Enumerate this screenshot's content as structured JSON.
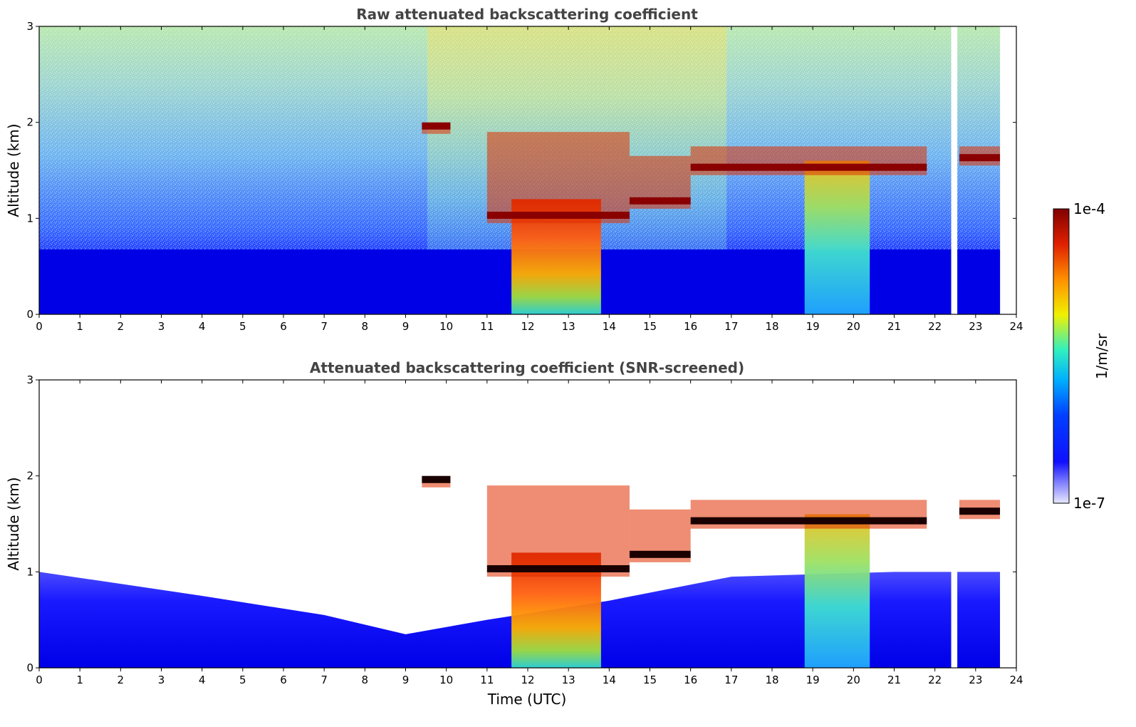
{
  "chart_data": [
    {
      "type": "heatmap",
      "title": "Raw attenuated backscattering coefficient",
      "xlabel": "",
      "ylabel": "Altitude (km)",
      "xlim": [
        0,
        24
      ],
      "ylim": [
        0,
        3
      ],
      "xticks": [
        "0",
        "1",
        "2",
        "3",
        "4",
        "5",
        "6",
        "7",
        "8",
        "9",
        "10",
        "11",
        "12",
        "13",
        "14",
        "15",
        "16",
        "17",
        "18",
        "19",
        "20",
        "21",
        "22",
        "23",
        "24"
      ],
      "yticks": [
        "0",
        "1",
        "2",
        "3"
      ],
      "data_gaps_utc": [
        [
          22.4,
          22.55
        ],
        [
          23.6,
          24
        ]
      ],
      "cloud_layers": [
        {
          "start": 9.4,
          "end": 10.1,
          "base_km": 1.88,
          "top_km": 1.98
        },
        {
          "start": 11.0,
          "end": 14.5,
          "base_km": 0.95,
          "top_km": 1.9
        },
        {
          "start": 14.5,
          "end": 16.0,
          "base_km": 1.1,
          "top_km": 1.65
        },
        {
          "start": 16.0,
          "end": 21.8,
          "base_km": 1.45,
          "top_km": 1.75
        },
        {
          "start": 22.6,
          "end": 23.6,
          "base_km": 1.55,
          "top_km": 1.75
        }
      ],
      "precipitation_or_fallstreaks": [
        {
          "start": 11.6,
          "end": 13.8,
          "from_km": 0,
          "to_km": 1.2
        },
        {
          "start": 18.8,
          "end": 20.4,
          "from_km": 0,
          "to_km": 1.6
        }
      ],
      "grid": false
    },
    {
      "type": "heatmap",
      "title": "Attenuated backscattering coefficient (SNR-screened)",
      "xlabel": "Time (UTC)",
      "ylabel": "Altitude (km)",
      "xlim": [
        0,
        24
      ],
      "ylim": [
        0,
        3
      ],
      "xticks": [
        "0",
        "1",
        "2",
        "3",
        "4",
        "5",
        "6",
        "7",
        "8",
        "9",
        "10",
        "11",
        "12",
        "13",
        "14",
        "15",
        "16",
        "17",
        "18",
        "19",
        "20",
        "21",
        "22",
        "23",
        "24"
      ],
      "yticks": [
        "0",
        "1",
        "2",
        "3"
      ],
      "screened_boundary_layer_top_km": [
        {
          "t": 0,
          "km": 1.0
        },
        {
          "t": 4,
          "km": 0.75
        },
        {
          "t": 7,
          "km": 0.55
        },
        {
          "t": 9,
          "km": 0.35
        },
        {
          "t": 11,
          "km": 0.5
        },
        {
          "t": 14,
          "km": 0.7
        },
        {
          "t": 17,
          "km": 0.95
        },
        {
          "t": 21,
          "km": 1.0
        },
        {
          "t": 23.6,
          "km": 1.0
        }
      ],
      "grid": false
    }
  ],
  "colorbar": {
    "label": "1/m/sr",
    "max_label": "1e-4",
    "min_label": "1e-7",
    "scale": "log",
    "colormap_stops": [
      "#e8e8ff",
      "#3333ff",
      "#0000f0",
      "#00a0ff",
      "#40f0d0",
      "#f0f000",
      "#ff8000",
      "#e02000",
      "#800000"
    ]
  }
}
